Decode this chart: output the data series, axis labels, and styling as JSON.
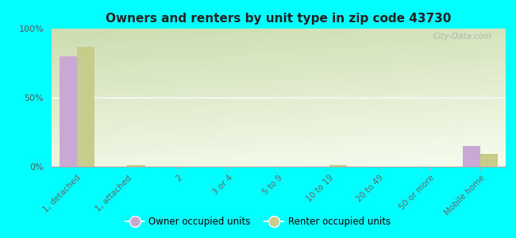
{
  "title": "Owners and renters by unit type in zip code 43730",
  "categories": [
    "1, detached",
    "1, attached",
    "2",
    "3 or 4",
    "5 to 9",
    "10 to 19",
    "20 to 49",
    "50 or more",
    "Mobile home"
  ],
  "owner_values": [
    80,
    0,
    0,
    0,
    0,
    0,
    0,
    0,
    15
  ],
  "renter_values": [
    87,
    1,
    0,
    0,
    0,
    1,
    0,
    0,
    9
  ],
  "owner_color": "#c9a8d4",
  "renter_color": "#c8cc8a",
  "background_color": "#00ffff",
  "plot_bg_color": "#e8f2d8",
  "bar_width": 0.35,
  "ylim": [
    0,
    100
  ],
  "yticks": [
    0,
    50,
    100
  ],
  "yticklabels": [
    "0%",
    "50%",
    "100%"
  ],
  "legend_owner": "Owner occupied units",
  "legend_renter": "Renter occupied units",
  "watermark": "City-Data.com"
}
